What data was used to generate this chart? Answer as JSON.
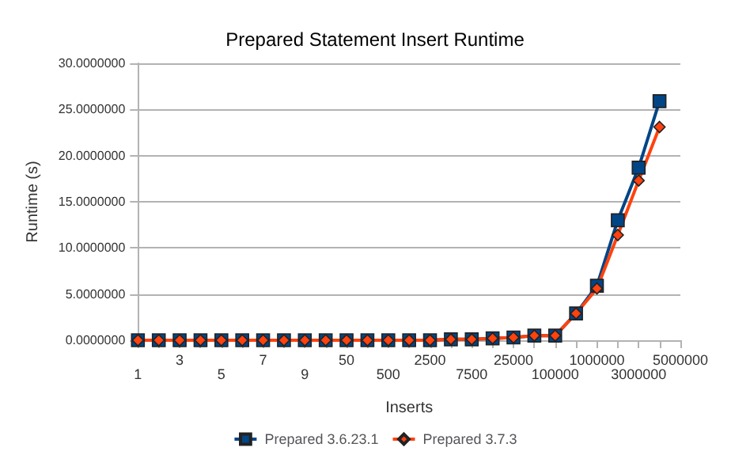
{
  "chart_data": {
    "type": "line",
    "title": "Prepared Statement Insert Runtime",
    "xlabel": "Inserts",
    "ylabel": "Runtime (s)",
    "categories": [
      "1",
      null,
      "3",
      null,
      "5",
      null,
      "7",
      null,
      "9",
      null,
      "50",
      null,
      "500",
      null,
      "2500",
      null,
      "7500",
      null,
      "25000",
      null,
      "100000",
      null,
      "1000000",
      null,
      "3000000",
      null,
      "5000000"
    ],
    "series": [
      {
        "name": "Prepared 3.6.23.1",
        "color": "#004586",
        "marker": "square",
        "values": [
          0,
          0,
          0,
          0,
          0,
          0,
          0,
          0,
          0,
          0,
          0,
          0,
          0,
          0,
          0,
          0.1,
          0.1,
          0.2,
          0.3,
          0.5,
          0.5,
          2.9,
          5.9,
          13.0,
          18.7,
          25.9,
          null
        ]
      },
      {
        "name": "Prepared 3.7.3",
        "color": "#ff420e",
        "marker": "diamond",
        "values": [
          0,
          0,
          0,
          0,
          0,
          0,
          0,
          0,
          0,
          0,
          0,
          0,
          0,
          0,
          0,
          0.1,
          0.1,
          0.2,
          0.3,
          0.5,
          0.5,
          2.9,
          5.6,
          11.4,
          17.3,
          23.1,
          null
        ]
      }
    ],
    "ylim": [
      0,
      30
    ],
    "yticks": [
      {
        "value": 0,
        "label": "0.0000000"
      },
      {
        "value": 5,
        "label": "5.0000000"
      },
      {
        "value": 10,
        "label": "10.0000000"
      },
      {
        "value": 15,
        "label": "15.0000000"
      },
      {
        "value": 20,
        "label": "20.0000000"
      },
      {
        "value": 25,
        "label": "25.0000000"
      },
      {
        "value": 30,
        "label": "30.0000000"
      }
    ],
    "grid": "y",
    "legend": "bottom",
    "line_style": "solid"
  }
}
